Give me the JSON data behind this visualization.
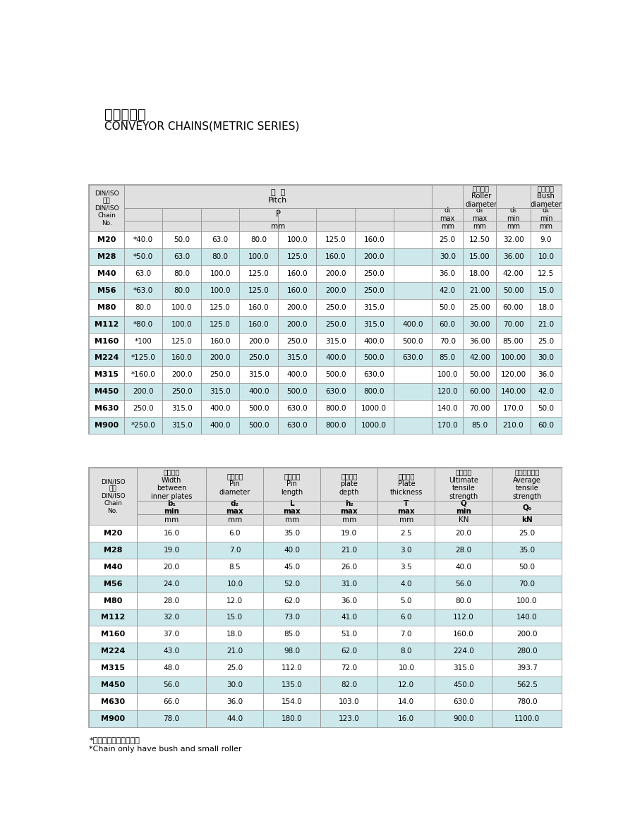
{
  "title_cn": "米制输送链",
  "title_en": "CONVEYOR CHAINS(METRIC SERIES)",
  "table1_data": [
    [
      "M20",
      "*40.0",
      "50.0",
      "63.0",
      "80.0",
      "100.0",
      "125.0",
      "160.0",
      "",
      "25.0",
      "12.50",
      "32.00",
      "9.0"
    ],
    [
      "M28",
      "*50.0",
      "63.0",
      "80.0",
      "100.0",
      "125.0",
      "160.0",
      "200.0",
      "",
      "30.0",
      "15.00",
      "36.00",
      "10.0"
    ],
    [
      "M40",
      "63.0",
      "80.0",
      "100.0",
      "125.0",
      "160.0",
      "200.0",
      "250.0",
      "",
      "36.0",
      "18.00",
      "42.00",
      "12.5"
    ],
    [
      "M56",
      "*63.0",
      "80.0",
      "100.0",
      "125.0",
      "160.0",
      "200.0",
      "250.0",
      "",
      "42.0",
      "21.00",
      "50.00",
      "15.0"
    ],
    [
      "M80",
      "80.0",
      "100.0",
      "125.0",
      "160.0",
      "200.0",
      "250.0",
      "315.0",
      "",
      "50.0",
      "25.00",
      "60.00",
      "18.0"
    ],
    [
      "M112",
      "*80.0",
      "100.0",
      "125.0",
      "160.0",
      "200.0",
      "250.0",
      "315.0",
      "400.0",
      "60.0",
      "30.00",
      "70.00",
      "21.0"
    ],
    [
      "M160",
      "*100",
      "125.0",
      "160.0",
      "200.0",
      "250.0",
      "315.0",
      "400.0",
      "500.0",
      "70.0",
      "36.00",
      "85.00",
      "25.0"
    ],
    [
      "M224",
      "*125.0",
      "160.0",
      "200.0",
      "250.0",
      "315.0",
      "400.0",
      "500.0",
      "630.0",
      "85.0",
      "42.00",
      "100.00",
      "30.0"
    ],
    [
      "M315",
      "*160.0",
      "200.0",
      "250.0",
      "315.0",
      "400.0",
      "500.0",
      "630.0",
      "",
      "100.0",
      "50.00",
      "120.00",
      "36.0"
    ],
    [
      "M450",
      "200.0",
      "250.0",
      "315.0",
      "400.0",
      "500.0",
      "630.0",
      "800.0",
      "",
      "120.0",
      "60.00",
      "140.00",
      "42.0"
    ],
    [
      "M630",
      "250.0",
      "315.0",
      "400.0",
      "500.0",
      "630.0",
      "800.0",
      "1000.0",
      "",
      "140.0",
      "70.00",
      "170.0",
      "50.0"
    ],
    [
      "M900",
      "*250.0",
      "315.0",
      "400.0",
      "500.0",
      "630.0",
      "800.0",
      "1000.0",
      "",
      "170.0",
      "85.0",
      "210.0",
      "60.0"
    ]
  ],
  "table1_highlighted_rows": [
    1,
    3,
    5,
    7,
    9,
    11
  ],
  "table2_data": [
    [
      "M20",
      "16.0",
      "6.0",
      "35.0",
      "19.0",
      "2.5",
      "20.0",
      "25.0"
    ],
    [
      "M28",
      "19.0",
      "7.0",
      "40.0",
      "21.0",
      "3.0",
      "28.0",
      "35.0"
    ],
    [
      "M40",
      "20.0",
      "8.5",
      "45.0",
      "26.0",
      "3.5",
      "40.0",
      "50.0"
    ],
    [
      "M56",
      "24.0",
      "10.0",
      "52.0",
      "31.0",
      "4.0",
      "56.0",
      "70.0"
    ],
    [
      "M80",
      "28.0",
      "12.0",
      "62.0",
      "36.0",
      "5.0",
      "80.0",
      "100.0"
    ],
    [
      "M112",
      "32.0",
      "15.0",
      "73.0",
      "41.0",
      "6.0",
      "112.0",
      "140.0"
    ],
    [
      "M160",
      "37.0",
      "18.0",
      "85.0",
      "51.0",
      "7.0",
      "160.0",
      "200.0"
    ],
    [
      "M224",
      "43.0",
      "21.0",
      "98.0",
      "62.0",
      "8.0",
      "224.0",
      "280.0"
    ],
    [
      "M315",
      "48.0",
      "25.0",
      "112.0",
      "72.0",
      "10.0",
      "315.0",
      "393.7"
    ],
    [
      "M450",
      "56.0",
      "30.0",
      "135.0",
      "82.0",
      "12.0",
      "450.0",
      "562.5"
    ],
    [
      "M630",
      "66.0",
      "36.0",
      "154.0",
      "103.0",
      "14.0",
      "630.0",
      "780.0"
    ],
    [
      "M900",
      "78.0",
      "44.0",
      "180.0",
      "123.0",
      "16.0",
      "900.0",
      "1100.0"
    ]
  ],
  "table2_highlighted_rows": [
    1,
    3,
    5,
    7,
    9,
    11
  ],
  "note_cn": "*链条只有套筒和小滚子",
  "note_en": "*Chain only have bush and small roller",
  "bg_color": "#ffffff",
  "header_bg": "#e0e0e0",
  "highlight_bg": "#cce8ea",
  "border_color": "#999999"
}
